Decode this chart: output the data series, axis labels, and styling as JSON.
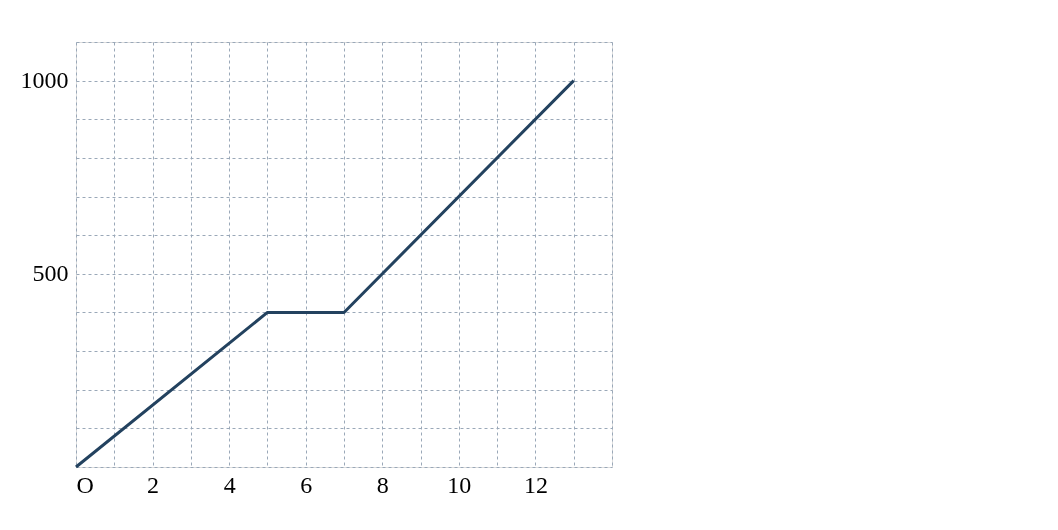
{
  "chart_data": {
    "type": "line",
    "x": [
      0,
      5,
      7,
      13
    ],
    "series": [
      {
        "color": "#23425f",
        "values": [
          0,
          400,
          400,
          1000
        ]
      }
    ],
    "xlim": [
      0,
      14
    ],
    "ylim": [
      0,
      1100
    ],
    "xticks": [
      {
        "value": 0,
        "label": "O"
      },
      {
        "value": 1,
        "label": null
      },
      2,
      {
        "value": 3,
        "label": null
      },
      4,
      {
        "value": 5,
        "label": null
      },
      6,
      {
        "value": 7,
        "label": null
      },
      8,
      {
        "value": 9,
        "label": null
      },
      10,
      {
        "value": 11,
        "label": null
      },
      12,
      {
        "value": 13,
        "label": null
      },
      {
        "value": 14,
        "label": null
      }
    ],
    "yticks": [
      {
        "value": 0,
        "label": null
      },
      {
        "value": 100,
        "label": null
      },
      {
        "value": 200,
        "label": null
      },
      {
        "value": 300,
        "label": null
      },
      {
        "value": 400,
        "label": null
      },
      500,
      {
        "value": 600,
        "label": null
      },
      {
        "value": 700,
        "label": null
      },
      {
        "value": 800,
        "label": null
      },
      {
        "value": 900,
        "label": null
      },
      1000,
      {
        "value": 1100,
        "label": null
      }
    ],
    "grid": true,
    "line_style": "solid",
    "marker": "none"
  }
}
